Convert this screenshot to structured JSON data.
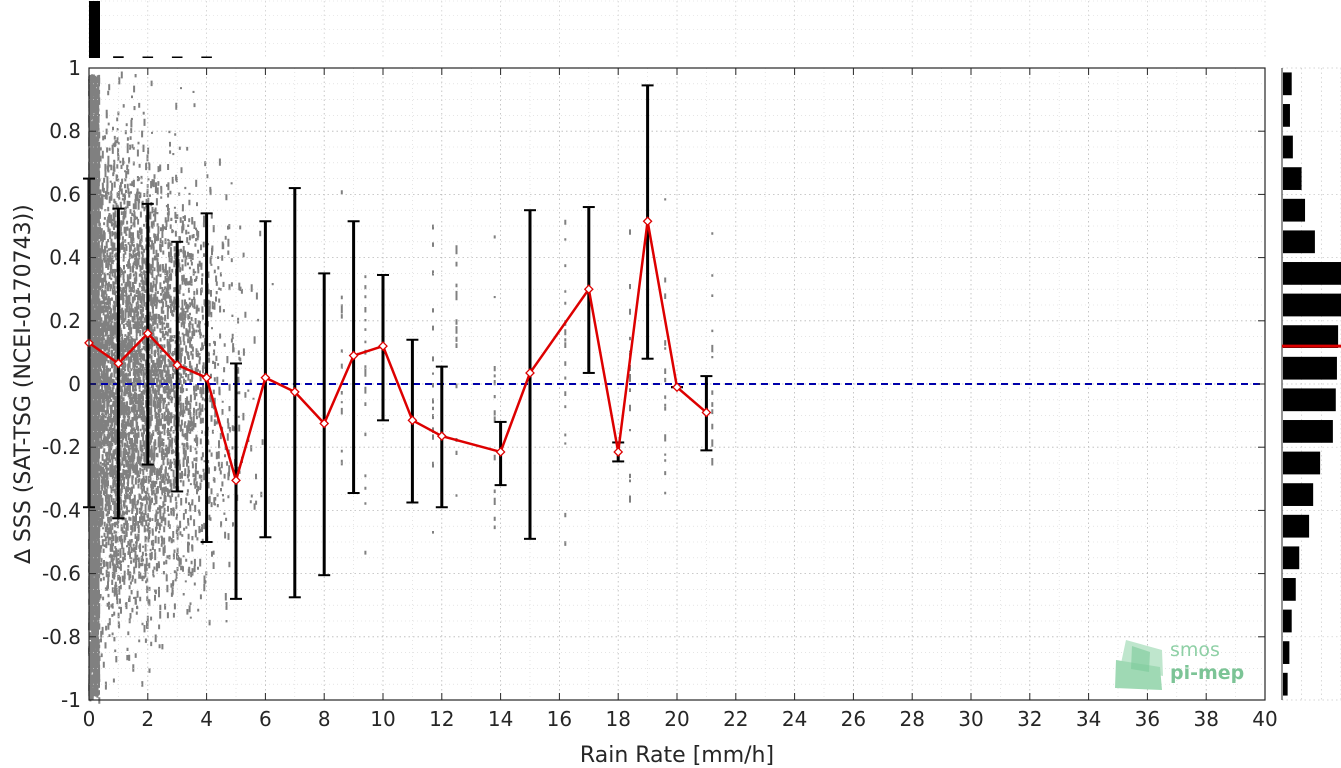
{
  "chart_data": {
    "type": "scatter",
    "xlabel": "Rain Rate [mm/h]",
    "ylabel": "∆ SSS (SAT-TSG (NCEI-0170743))",
    "xlim": [
      0,
      40
    ],
    "ylim": [
      -1,
      1
    ],
    "x_ticks": [
      0,
      2,
      4,
      6,
      8,
      10,
      12,
      14,
      16,
      18,
      20,
      22,
      24,
      26,
      28,
      30,
      32,
      34,
      36,
      38,
      40
    ],
    "y_ticks": [
      -1,
      -0.8,
      -0.6,
      -0.4,
      -0.2,
      0,
      0.2,
      0.4,
      0.6,
      0.8,
      1
    ],
    "x_tick_labels": [
      "0",
      "2",
      "4",
      "6",
      "8",
      "10",
      "12",
      "14",
      "16",
      "18",
      "20",
      "22",
      "24",
      "26",
      "28",
      "30",
      "32",
      "34",
      "36",
      "38",
      "40"
    ],
    "y_tick_labels": [
      "-1",
      "-0.8",
      "-0.6",
      "-0.4",
      "-0.2",
      "0",
      "0.2",
      "0.4",
      "0.6",
      "0.8",
      "1"
    ],
    "grid": true,
    "zero_line": {
      "y": 0,
      "color": "#0000aa",
      "style": "dashed"
    },
    "scatter_color": "#808080",
    "mean_series": {
      "color": "#dd0000",
      "points": [
        {
          "x": 0,
          "y": 0.13,
          "lo": -0.39,
          "hi": 0.65
        },
        {
          "x": 1,
          "y": 0.065,
          "lo": -0.425,
          "hi": 0.555
        },
        {
          "x": 2,
          "y": 0.16,
          "lo": -0.255,
          "hi": 0.57
        },
        {
          "x": 3,
          "y": 0.06,
          "lo": -0.34,
          "hi": 0.45
        },
        {
          "x": 4,
          "y": 0.02,
          "lo": -0.5,
          "hi": 0.54
        },
        {
          "x": 5,
          "y": -0.305,
          "lo": -0.68,
          "hi": 0.065
        },
        {
          "x": 6,
          "y": 0.02,
          "lo": -0.485,
          "hi": 0.515
        },
        {
          "x": 7,
          "y": -0.025,
          "lo": -0.675,
          "hi": 0.62
        },
        {
          "x": 8,
          "y": -0.125,
          "lo": -0.605,
          "hi": 0.35
        },
        {
          "x": 9,
          "y": 0.09,
          "lo": -0.345,
          "hi": 0.515
        },
        {
          "x": 10,
          "y": 0.12,
          "lo": -0.115,
          "hi": 0.345
        },
        {
          "x": 11,
          "y": -0.115,
          "lo": -0.375,
          "hi": 0.14
        },
        {
          "x": 12,
          "y": -0.165,
          "lo": -0.39,
          "hi": 0.055
        },
        {
          "x": 14,
          "y": -0.215,
          "lo": -0.32,
          "hi": -0.12
        },
        {
          "x": 15,
          "y": 0.035,
          "lo": -0.49,
          "hi": 0.55
        },
        {
          "x": 17,
          "y": 0.3,
          "lo": 0.035,
          "hi": 0.56
        },
        {
          "x": 18,
          "y": -0.215,
          "lo": -0.245,
          "hi": -0.185
        },
        {
          "x": 19,
          "y": 0.515,
          "lo": 0.08,
          "hi": 0.945
        },
        {
          "x": 20,
          "y": -0.01,
          "lo": -0.01,
          "hi": -0.01
        },
        {
          "x": 21,
          "y": -0.09,
          "lo": -0.21,
          "hi": 0.025
        }
      ]
    },
    "top_histogram": {
      "bins_x": [
        0,
        1,
        2,
        3,
        4
      ],
      "relative_counts": [
        1.0,
        0.03,
        0.02,
        0.01,
        0.005
      ]
    },
    "right_histogram": {
      "bins_y": [
        0.95,
        0.85,
        0.75,
        0.65,
        0.55,
        0.45,
        0.35,
        0.25,
        0.15,
        0.05,
        -0.05,
        -0.15,
        -0.25,
        -0.35,
        -0.45,
        -0.55,
        -0.65,
        -0.75,
        -0.85,
        -0.95
      ],
      "relative_counts": [
        0.15,
        0.12,
        0.17,
        0.32,
        0.38,
        0.55,
        1.0,
        1.0,
        0.95,
        0.93,
        0.91,
        0.86,
        0.64,
        0.52,
        0.45,
        0.28,
        0.22,
        0.15,
        0.11,
        0.08
      ],
      "mean_marker_y": 0.12,
      "mean_marker_color": "#dd0000"
    },
    "logo": {
      "line1": "smos",
      "line2": "pi-mep"
    }
  }
}
